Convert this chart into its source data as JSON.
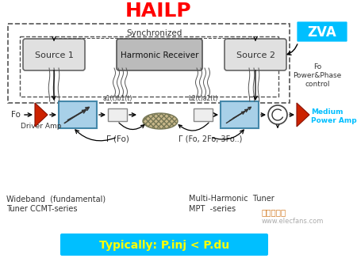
{
  "title": "HAILP",
  "title_color": "#FF0000",
  "title_fontsize": 18,
  "bg_color": "#FFFFFF",
  "zva_label": "ZVA",
  "zva_bg": "#00BFFF",
  "zva_text_color": "#FFFFFF",
  "synchronized_label": "Synchronized",
  "source1_label": "Source 1",
  "source2_label": "Source 2",
  "harmonic_receiver_label": "Harmonic Receiver",
  "driver_amp_label": "Driver Amp",
  "medium_power_amp_label": "Medium\nPower Amp",
  "medium_power_amp_color": "#00BFFF",
  "fo_label": "Fo",
  "fo_power_label": "Fo\nPower&Phase\ncontrol",
  "a1b1_label": "a1(t)b1(t)",
  "b2a2_label": "b2(t)a2(t)",
  "gamma_fo_label": "Γ (Fo)",
  "gamma_multi_label": "Γ (Fo, 2Fo, 3Fo..)",
  "wideband_label": "Wideband  (fundamental)\nTuner CCMT-series",
  "multi_harmonic_label": "Multi-Harmonic  Tuner\nMPT  -series",
  "bottom_text": "Typically: P.inj < P.du",
  "bottom_bg": "#00BFFF",
  "bottom_text_color": "#FFFF00",
  "watermark1": "微波射频网",
  "watermark2": "www.elecfans.com",
  "box_color_light_blue": "#A8D0E8",
  "box_color_gray": "#BBBBBB",
  "box_color_source": "#E0E0E0"
}
